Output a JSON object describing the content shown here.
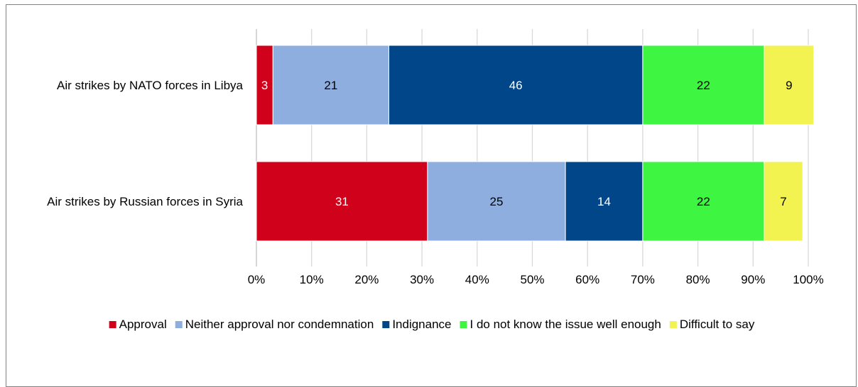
{
  "chart_data": {
    "type": "bar",
    "orientation": "horizontal",
    "stacked": "percent",
    "title": "",
    "xlabel": "",
    "ylabel": "",
    "xlim": [
      0,
      100
    ],
    "x_ticks": [
      "0%",
      "10%",
      "20%",
      "30%",
      "40%",
      "50%",
      "60%",
      "70%",
      "80%",
      "90%",
      "100%"
    ],
    "grid": "vertical",
    "legend_position": "bottom",
    "categories": [
      "Air strikes by NATO forces in Libya",
      "Air strikes by Russian forces in Syria"
    ],
    "series": [
      {
        "name": "Approval",
        "color": "#d0021b",
        "label_color": "#ffffff",
        "values": [
          3,
          31
        ]
      },
      {
        "name": "Neither approval nor condemnation",
        "color": "#8eaee0",
        "label_color": "#000000",
        "values": [
          21,
          25
        ]
      },
      {
        "name": "Indignance",
        "color": "#02468a",
        "label_color": "#ffffff",
        "values": [
          46,
          14
        ]
      },
      {
        "name": "I do not know the issue well enough",
        "color": "#3ef542",
        "label_color": "#000000",
        "values": [
          22,
          22
        ]
      },
      {
        "name": "Difficult to say",
        "color": "#f2f251",
        "label_color": "#000000",
        "values": [
          9,
          7
        ]
      }
    ]
  }
}
